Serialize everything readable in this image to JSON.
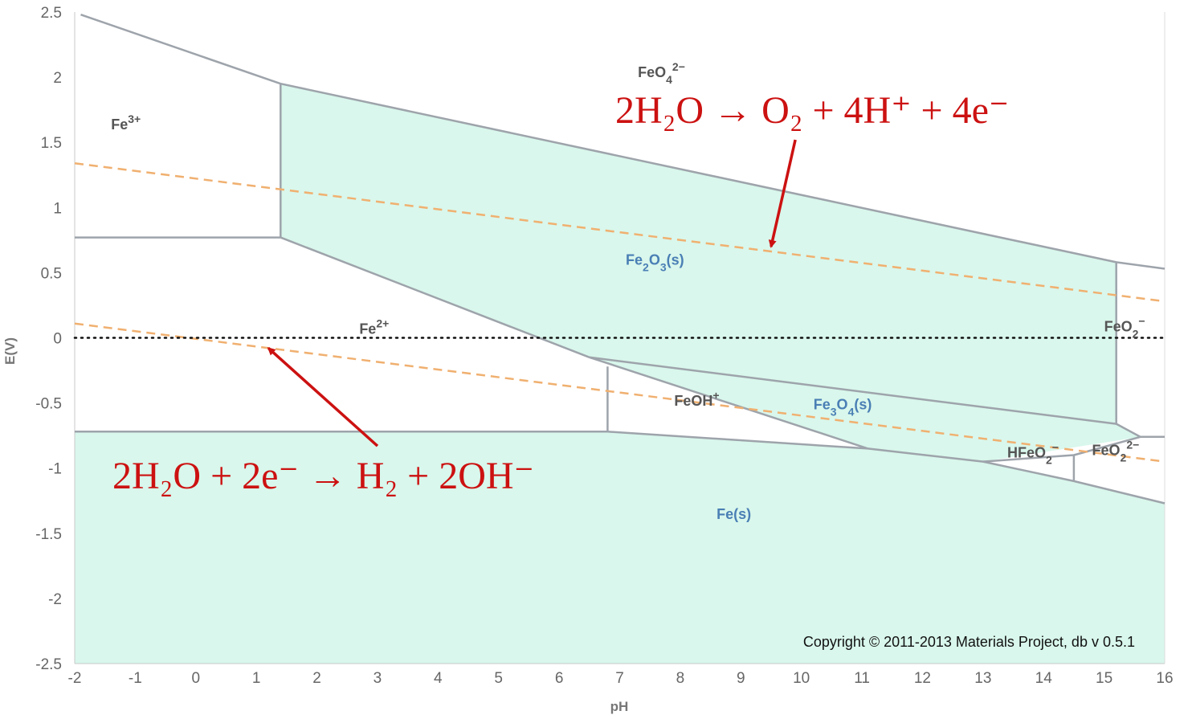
{
  "chart_data": {
    "type": "area",
    "xlabel": "pH",
    "ylabel": "E(V)",
    "xlim": [
      -2,
      16
    ],
    "ylim": [
      -2.5,
      2.5
    ],
    "x_ticks": [
      -2,
      -1,
      0,
      1,
      2,
      3,
      4,
      5,
      6,
      7,
      8,
      9,
      10,
      11,
      12,
      13,
      14,
      15,
      16
    ],
    "y_ticks": [
      2.5,
      2,
      1.5,
      1,
      0.5,
      0,
      -0.5,
      -1,
      -1.5,
      -2,
      -2.5
    ],
    "colors": {
      "region_fill": "#d9f7ec",
      "boundary": "#9ea4ab",
      "water_line": "#f0b070",
      "zero_line": "#111111",
      "annotation": "#cc1111",
      "solid_label": "#4a7fb5",
      "ion_label": "#555555"
    },
    "regions": [
      {
        "name": "Fe2O3(s)",
        "kind": "solid",
        "polygon": [
          [
            1.4,
            1.95
          ],
          [
            15.2,
            0.58
          ],
          [
            15.2,
            -0.66
          ],
          [
            6.5,
            -0.15
          ],
          [
            1.4,
            0.77
          ]
        ]
      },
      {
        "name": "Fe3O4(s)",
        "kind": "solid",
        "polygon": [
          [
            6.5,
            -0.15
          ],
          [
            15.2,
            -0.66
          ],
          [
            15.6,
            -0.76
          ],
          [
            13,
            -0.95
          ],
          [
            11.1,
            -0.85
          ]
        ]
      },
      {
        "name": "Fe(s)",
        "kind": "solid",
        "polygon": [
          [
            -2,
            -0.72
          ],
          [
            6.8,
            -0.72
          ],
          [
            11.1,
            -0.85
          ],
          [
            13,
            -0.95
          ],
          [
            14.5,
            -1.1
          ],
          [
            16,
            -1.27
          ],
          [
            16,
            -2.5
          ],
          [
            -2,
            -2.5
          ]
        ]
      }
    ],
    "boundaries": [
      [
        [
          -1.9,
          2.48
        ],
        [
          1.4,
          1.95
        ],
        [
          15.2,
          0.58
        ],
        [
          16,
          0.53
        ]
      ],
      [
        [
          1.4,
          1.95
        ],
        [
          1.4,
          0.77
        ]
      ],
      [
        [
          -2,
          0.77
        ],
        [
          1.4,
          0.77
        ]
      ],
      [
        [
          1.4,
          0.77
        ],
        [
          6.5,
          -0.15
        ]
      ],
      [
        [
          6.5,
          -0.15
        ],
        [
          11.1,
          -0.85
        ]
      ],
      [
        [
          6.5,
          -0.15
        ],
        [
          15.2,
          -0.66
        ]
      ],
      [
        [
          6.8,
          -0.22
        ],
        [
          6.8,
          -0.72
        ]
      ],
      [
        [
          -2,
          -0.72
        ],
        [
          6.8,
          -0.72
        ],
        [
          11.1,
          -0.85
        ],
        [
          13,
          -0.95
        ],
        [
          14.5,
          -1.1
        ],
        [
          16,
          -1.27
        ]
      ],
      [
        [
          15.2,
          0.58
        ],
        [
          15.2,
          -0.66
        ]
      ],
      [
        [
          15.2,
          -0.66
        ],
        [
          15.6,
          -0.76
        ],
        [
          16,
          -0.76
        ]
      ],
      [
        [
          13,
          -0.95
        ],
        [
          14.5,
          -0.9
        ],
        [
          15.6,
          -0.76
        ]
      ],
      [
        [
          14.5,
          -0.9
        ],
        [
          14.5,
          -1.1
        ]
      ]
    ],
    "water_lines": [
      {
        "points": [
          [
            -2,
            1.34
          ],
          [
            16,
            0.28
          ]
        ]
      },
      {
        "points": [
          [
            -2,
            0.11
          ],
          [
            16,
            -0.95
          ]
        ]
      }
    ],
    "zero_line": {
      "y": 0,
      "style": "dotted"
    },
    "labels": [
      {
        "id": "FeO4",
        "base": "FeO",
        "sub": "4",
        "sup": "2−",
        "x": 7.3,
        "y": 2.0,
        "kind": "ion"
      },
      {
        "id": "Fe3plus",
        "base": "Fe",
        "sub": "",
        "sup": "3+",
        "x": -1.4,
        "y": 1.6,
        "kind": "ion"
      },
      {
        "id": "Fe2O3",
        "base": "Fe",
        "sub": "2",
        "mid": "O",
        "sub2": "3",
        "tail": "(s)",
        "x": 7.1,
        "y": 0.56,
        "kind": "solid"
      },
      {
        "id": "Fe2plus",
        "base": "Fe",
        "sub": "",
        "sup": "2+",
        "x": 2.7,
        "y": 0.03,
        "kind": "ion"
      },
      {
        "id": "FeO2",
        "base": "FeO",
        "sub": "2",
        "sup": "−",
        "x": 15.0,
        "y": 0.05,
        "kind": "ion"
      },
      {
        "id": "FeOH",
        "base": "FeOH",
        "sub": "",
        "sup": "+",
        "x": 7.9,
        "y": -0.52,
        "kind": "ion"
      },
      {
        "id": "Fe3O4",
        "base": "Fe",
        "sub": "3",
        "mid": "O",
        "sub2": "4",
        "tail": "(s)",
        "x": 10.2,
        "y": -0.55,
        "kind": "solid"
      },
      {
        "id": "HFeO2",
        "base": "HFeO",
        "sub": "2",
        "sup": "−",
        "x": 13.4,
        "y": -0.92,
        "kind": "ion"
      },
      {
        "id": "FeO2b",
        "base": "FeO",
        "sub": "2",
        "sup": "2−",
        "x": 14.8,
        "y": -0.9,
        "kind": "ion"
      },
      {
        "id": "Fes",
        "base": "Fe(s)",
        "sub": "",
        "sup": "",
        "x": 8.6,
        "y": -1.39,
        "kind": "solid"
      }
    ],
    "annotations": [
      {
        "text": "2H₂O → O₂ + 4H⁺ + 4e⁻",
        "arrow_from": [
          9.9,
          1.52
        ],
        "arrow_to": [
          9.5,
          0.7
        ]
      },
      {
        "text": "2H₂O + 2e⁻ → H₂ + 2OH⁻",
        "arrow_from": [
          3.0,
          -0.83
        ],
        "arrow_to": [
          1.2,
          -0.08
        ]
      }
    ],
    "copyright": "Copyright © 2011-2013 Materials Project, db v 0.5.1"
  }
}
